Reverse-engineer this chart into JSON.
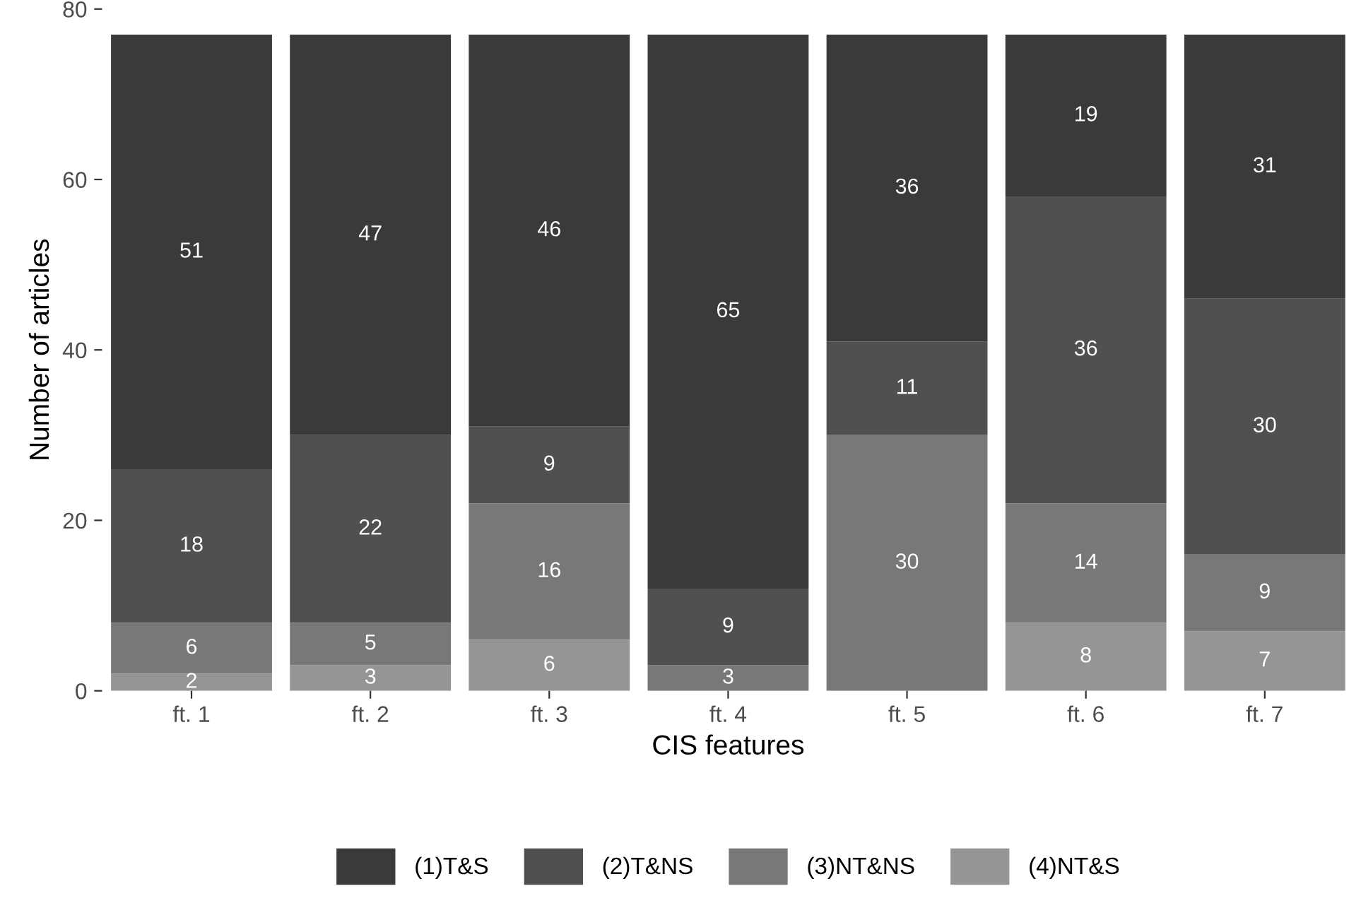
{
  "chart_data": {
    "type": "bar",
    "xlabel": "CIS features",
    "ylabel": "Number of articles",
    "categories": [
      "ft. 1",
      "ft. 2",
      "ft. 3",
      "ft. 4",
      "ft. 5",
      "ft. 6",
      "ft. 7"
    ],
    "stacked": true,
    "series": [
      {
        "name": "(4)NT&S",
        "color": "#959595",
        "values": [
          2,
          3,
          6,
          0,
          0,
          8,
          7
        ],
        "value_labels": [
          "2",
          "3",
          "6",
          null,
          null,
          "8",
          "7"
        ]
      },
      {
        "name": "(3)NT&NS",
        "color": "#787878",
        "values": [
          6,
          5,
          16,
          3,
          30,
          14,
          9
        ],
        "value_labels": [
          "6",
          "5",
          "16",
          "3",
          "30",
          "14",
          "9"
        ]
      },
      {
        "name": "(2)T&NS",
        "color": "#505050",
        "values": [
          18,
          22,
          9,
          9,
          11,
          36,
          30
        ],
        "value_labels": [
          "18",
          "22",
          "9",
          "9",
          "11",
          "36",
          "30"
        ]
      },
      {
        "name": "(1)T&S",
        "color": "#3a3a3a",
        "values": [
          51,
          47,
          46,
          65,
          36,
          19,
          31
        ],
        "value_labels": [
          "51",
          "47",
          "46",
          "65",
          "36",
          "19",
          "31"
        ]
      }
    ],
    "ylim": [
      0,
      80
    ],
    "yticks": [
      0,
      20,
      40,
      60,
      80
    ],
    "grid": false,
    "legend": "bottom"
  }
}
